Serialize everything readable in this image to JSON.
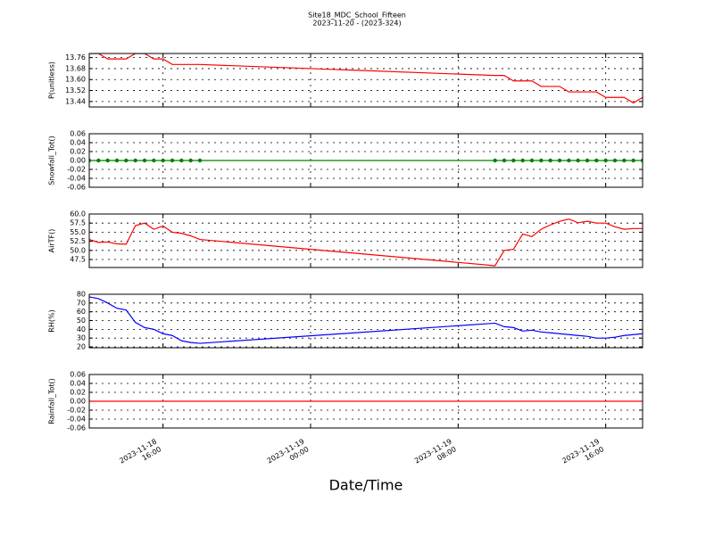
{
  "chart_data": [
    {
      "type": "line",
      "title": "Site18_MDC_School_Fifteen",
      "subtitle": "2023-11-20 - (2023-324)",
      "y_label": "P(unitless)",
      "x": [
        "2023-11-18 12:00",
        "2023-11-18 12:30",
        "2023-11-18 13:00",
        "2023-11-18 13:30",
        "2023-11-18 14:00",
        "2023-11-18 14:30",
        "2023-11-18 15:00",
        "2023-11-18 15:30",
        "2023-11-18 16:00",
        "2023-11-18 16:30",
        "2023-11-18 17:00",
        "2023-11-18 17:30",
        "2023-11-18 18:00",
        "2023-11-19 10:00",
        "2023-11-19 10:30",
        "2023-11-19 11:00",
        "2023-11-19 11:30",
        "2023-11-19 12:00",
        "2023-11-19 12:30",
        "2023-11-19 13:00",
        "2023-11-19 13:30",
        "2023-11-19 14:00",
        "2023-11-19 14:30",
        "2023-11-19 15:00",
        "2023-11-19 15:30",
        "2023-11-19 16:00",
        "2023-11-19 16:30",
        "2023-11-19 17:00",
        "2023-11-19 17:30",
        "2023-11-19 18:00"
      ],
      "xlim": [
        "2023-11-18 12:00",
        "2023-11-19 18:00"
      ],
      "series": [
        {
          "name": "P(unitless)",
          "color": "#ff0000",
          "values": [
            13.79,
            13.79,
            13.75,
            13.75,
            13.75,
            13.79,
            13.79,
            13.75,
            13.75,
            13.71,
            13.71,
            13.71,
            13.71,
            13.63,
            13.63,
            13.59,
            13.59,
            13.59,
            13.55,
            13.55,
            13.55,
            13.51,
            13.51,
            13.51,
            13.51,
            13.47,
            13.47,
            13.47,
            13.43,
            13.47
          ]
        }
      ],
      "ylim": [
        13.4,
        13.79
      ],
      "yticks": [
        13.44,
        13.52,
        {
          "value": 13.6,
          "label": "13.60"
        },
        13.68,
        13.76
      ],
      "grid": true
    },
    {
      "type": "line",
      "y_label": "Snowfall_Tot()",
      "x": [
        "2023-11-18 12:00",
        "2023-11-18 12:30",
        "2023-11-18 13:00",
        "2023-11-18 13:30",
        "2023-11-18 14:00",
        "2023-11-18 14:30",
        "2023-11-18 15:00",
        "2023-11-18 15:30",
        "2023-11-18 16:00",
        "2023-11-18 16:30",
        "2023-11-18 17:00",
        "2023-11-18 17:30",
        "2023-11-18 18:00",
        "2023-11-19 10:00",
        "2023-11-19 10:30",
        "2023-11-19 11:00",
        "2023-11-19 11:30",
        "2023-11-19 12:00",
        "2023-11-19 12:30",
        "2023-11-19 13:00",
        "2023-11-19 13:30",
        "2023-11-19 14:00",
        "2023-11-19 14:30",
        "2023-11-19 15:00",
        "2023-11-19 15:30",
        "2023-11-19 16:00",
        "2023-11-19 16:30",
        "2023-11-19 17:00",
        "2023-11-19 17:30",
        "2023-11-19 18:00"
      ],
      "xlim": [
        "2023-11-18 12:00",
        "2023-11-19 18:00"
      ],
      "series": [
        {
          "name": "Snowfall_Tot()",
          "color": "#008000",
          "marker": true,
          "values": [
            0,
            0,
            0,
            0,
            0,
            0,
            0,
            0,
            0,
            0,
            0,
            0,
            0,
            0,
            0,
            0,
            0,
            0,
            0,
            0,
            0,
            0,
            0,
            0,
            0,
            0,
            0,
            0,
            0,
            0
          ]
        }
      ],
      "ylim": [
        -0.06,
        0.06
      ],
      "yticks": [
        -0.06,
        -0.04,
        -0.02,
        {
          "value": 0,
          "label": "0.00"
        },
        0.02,
        0.04,
        0.06
      ],
      "grid": true
    },
    {
      "type": "line",
      "y_label": "AirTF()",
      "x": [
        "2023-11-18 12:00",
        "2023-11-18 12:30",
        "2023-11-18 13:00",
        "2023-11-18 13:30",
        "2023-11-18 14:00",
        "2023-11-18 14:30",
        "2023-11-18 15:00",
        "2023-11-18 15:30",
        "2023-11-18 16:00",
        "2023-11-18 16:30",
        "2023-11-18 17:00",
        "2023-11-18 17:30",
        "2023-11-18 18:00",
        "2023-11-19 10:00",
        "2023-11-19 10:30",
        "2023-11-19 11:00",
        "2023-11-19 11:30",
        "2023-11-19 12:00",
        "2023-11-19 12:30",
        "2023-11-19 13:00",
        "2023-11-19 13:30",
        "2023-11-19 14:00",
        "2023-11-19 14:30",
        "2023-11-19 15:00",
        "2023-11-19 15:30",
        "2023-11-19 16:00",
        "2023-11-19 16:30",
        "2023-11-19 17:00",
        "2023-11-19 17:30",
        "2023-11-19 18:00"
      ],
      "xlim": [
        "2023-11-18 12:00",
        "2023-11-19 18:00"
      ],
      "series": [
        {
          "name": "AirTF()",
          "color": "#ff0000",
          "values": [
            53,
            52.2,
            52.3,
            51.8,
            51.7,
            56.8,
            57.5,
            55.8,
            56.7,
            55,
            54.7,
            54,
            53,
            45.8,
            50,
            50.3,
            54.5,
            53.8,
            55.8,
            57,
            58,
            58.6,
            57.6,
            58,
            57.5,
            57.5,
            56.5,
            55.8,
            56,
            56
          ]
        }
      ],
      "ylim": [
        45.3,
        60
      ],
      "yticks": [
        47.5,
        {
          "value": 50,
          "label": "50.0"
        },
        52.5,
        {
          "value": 55,
          "label": "55.0"
        },
        57.5,
        {
          "value": 60,
          "label": "60.0"
        }
      ],
      "grid": true
    },
    {
      "type": "line",
      "y_label": "RH(%)",
      "x": [
        "2023-11-18 12:00",
        "2023-11-18 12:30",
        "2023-11-18 13:00",
        "2023-11-18 13:30",
        "2023-11-18 14:00",
        "2023-11-18 14:30",
        "2023-11-18 15:00",
        "2023-11-18 15:30",
        "2023-11-18 16:00",
        "2023-11-18 16:30",
        "2023-11-18 17:00",
        "2023-11-18 17:30",
        "2023-11-18 18:00",
        "2023-11-19 10:00",
        "2023-11-19 10:30",
        "2023-11-19 11:00",
        "2023-11-19 11:30",
        "2023-11-19 12:00",
        "2023-11-19 12:30",
        "2023-11-19 13:00",
        "2023-11-19 13:30",
        "2023-11-19 14:00",
        "2023-11-19 14:30",
        "2023-11-19 15:00",
        "2023-11-19 15:30",
        "2023-11-19 16:00",
        "2023-11-19 16:30",
        "2023-11-19 17:00",
        "2023-11-19 17:30",
        "2023-11-19 18:00"
      ],
      "xlim": [
        "2023-11-18 12:00",
        "2023-11-19 18:00"
      ],
      "series": [
        {
          "name": "RH(%)",
          "color": "#0000ff",
          "values": [
            77,
            75,
            70,
            64,
            62,
            48,
            42,
            40,
            35,
            33,
            27,
            25,
            24,
            47,
            43,
            42,
            38,
            39,
            37,
            36,
            35,
            34,
            33,
            32,
            30,
            30,
            31,
            33,
            34,
            35
          ]
        }
      ],
      "ylim": [
        19,
        80
      ],
      "yticks": [
        20,
        30,
        40,
        50,
        60,
        70,
        80
      ],
      "grid": true
    },
    {
      "type": "line",
      "y_label": "Rainfall_Tot()",
      "x_label": "Date/Time",
      "x": [
        "2023-11-18 12:00",
        "2023-11-18 12:30",
        "2023-11-18 13:00",
        "2023-11-18 13:30",
        "2023-11-18 14:00",
        "2023-11-18 14:30",
        "2023-11-18 15:00",
        "2023-11-18 15:30",
        "2023-11-18 16:00",
        "2023-11-18 16:30",
        "2023-11-18 17:00",
        "2023-11-18 17:30",
        "2023-11-18 18:00",
        "2023-11-19 10:00",
        "2023-11-19 10:30",
        "2023-11-19 11:00",
        "2023-11-19 11:30",
        "2023-11-19 12:00",
        "2023-11-19 12:30",
        "2023-11-19 13:00",
        "2023-11-19 13:30",
        "2023-11-19 14:00",
        "2023-11-19 14:30",
        "2023-11-19 15:00",
        "2023-11-19 15:30",
        "2023-11-19 16:00",
        "2023-11-19 16:30",
        "2023-11-19 17:00",
        "2023-11-19 17:30",
        "2023-11-19 18:00"
      ],
      "xlim": [
        "2023-11-18 12:00",
        "2023-11-19 18:00"
      ],
      "xticks": [
        "2023-11-18 16:00",
        "2023-11-19 00:00",
        "2023-11-19 08:00",
        "2023-11-19 16:00"
      ],
      "series": [
        {
          "name": "Rainfall_Tot()",
          "color": "#ff0000",
          "values": [
            0,
            0,
            0,
            0,
            0,
            0,
            0,
            0,
            0,
            0,
            0,
            0,
            0,
            0,
            0,
            0,
            0,
            0,
            0,
            0,
            0,
            0,
            0,
            0,
            0,
            0,
            0,
            0,
            0,
            0
          ]
        }
      ],
      "ylim": [
        -0.06,
        0.06
      ],
      "yticks": [
        -0.06,
        -0.04,
        -0.02,
        {
          "value": 0,
          "label": "0.00"
        },
        0.02,
        0.04,
        0.06
      ],
      "grid": true
    }
  ]
}
